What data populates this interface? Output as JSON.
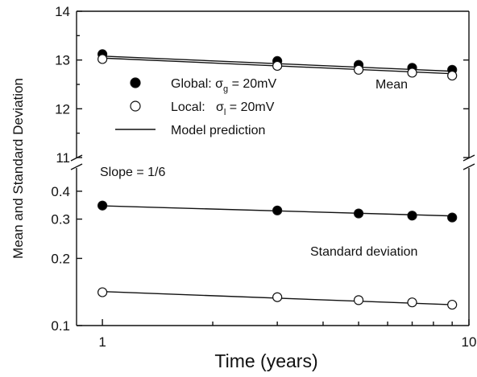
{
  "chart_data": {
    "type": "scatter",
    "xlabel": "Time (years)",
    "ylabel": "Mean and Standard Deviation",
    "x_scale": "log",
    "xlim": [
      0.85,
      10
    ],
    "x_ticks": [
      1,
      10
    ],
    "x_tick_labels": [
      "1",
      "10"
    ],
    "broken_y_axis": true,
    "panels": [
      {
        "name": "Mean",
        "y_scale": "linear",
        "ylim": [
          11,
          14
        ],
        "y_ticks": [
          11,
          12,
          13,
          14
        ],
        "y_tick_labels": [
          "11",
          "12",
          "13",
          "14"
        ],
        "label": "Mean",
        "series": [
          {
            "name": "Global",
            "marker": "filled-circle",
            "x": [
              1,
              3,
              5,
              7,
              9
            ],
            "y": [
              13.12,
              12.98,
              12.9,
              12.84,
              12.8
            ]
          },
          {
            "name": "Local",
            "marker": "open-circle",
            "x": [
              1,
              3,
              5,
              7,
              9
            ],
            "y": [
              13.02,
              12.88,
              12.8,
              12.74,
              12.68
            ]
          }
        ],
        "model_lines": [
          {
            "x": [
              1,
              9
            ],
            "y": [
              13.08,
              12.77
            ]
          },
          {
            "x": [
              1,
              9
            ],
            "y": [
              13.04,
              12.72
            ]
          }
        ]
      },
      {
        "name": "Standard deviation",
        "y_scale": "log",
        "ylim": [
          0.1,
          0.5
        ],
        "y_ticks": [
          0.1,
          0.2,
          0.3,
          0.4
        ],
        "y_tick_labels": [
          "0.1",
          "0.2",
          "0.3",
          "0.4"
        ],
        "label": "Standard deviation",
        "series": [
          {
            "name": "Global",
            "marker": "filled-circle",
            "x": [
              1,
              3,
              5,
              7,
              9
            ],
            "y": [
              0.345,
              0.328,
              0.318,
              0.311,
              0.305
            ]
          },
          {
            "name": "Local",
            "marker": "open-circle",
            "x": [
              1,
              3,
              5,
              7,
              9
            ],
            "y": [
              0.141,
              0.134,
              0.13,
              0.127,
              0.124
            ]
          }
        ],
        "model_lines": [
          {
            "x": [
              1,
              9
            ],
            "y": [
              0.344,
              0.31
            ]
          },
          {
            "x": [
              1,
              9
            ],
            "y": [
              0.142,
              0.124
            ]
          }
        ]
      }
    ],
    "legend": {
      "placement": "upper-left",
      "entries": [
        {
          "marker": "filled-circle",
          "text": "Global: ",
          "sym": "σ",
          "sub": "g",
          "rest": " = 20mV"
        },
        {
          "marker": "open-circle",
          "text": "Local:   ",
          "sym": "σ",
          "sub": "l",
          "rest": " = 20mV"
        },
        {
          "marker": "line",
          "text": "Model prediction",
          "sym": "",
          "sub": "",
          "rest": ""
        }
      ]
    },
    "annotations": {
      "slope": "Slope = 1/6"
    }
  }
}
